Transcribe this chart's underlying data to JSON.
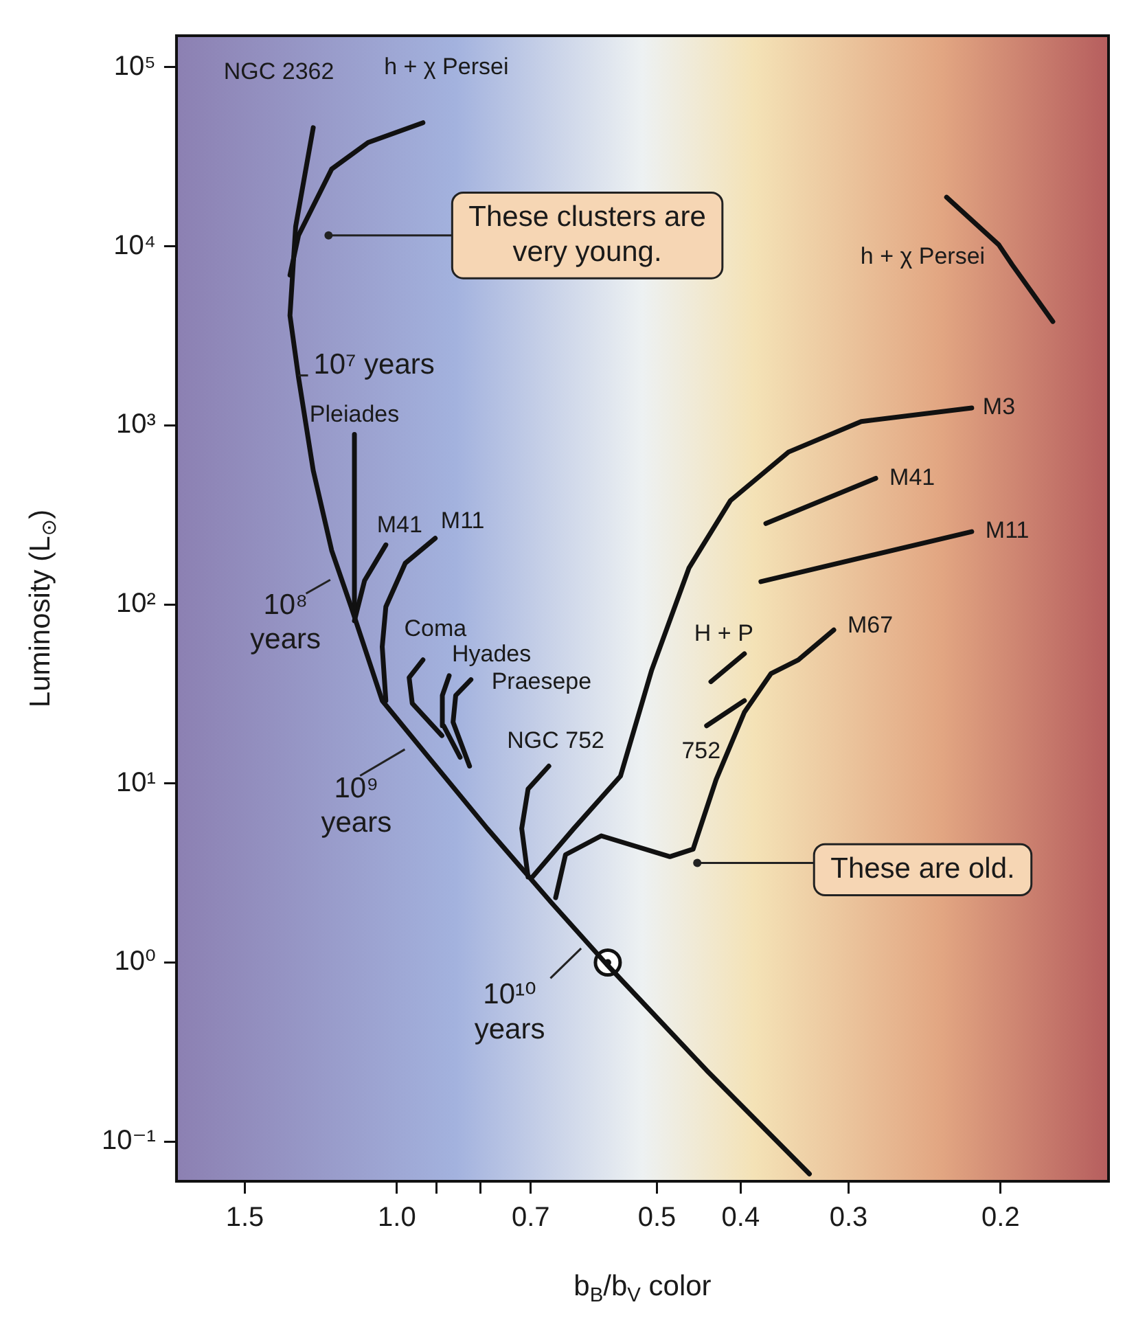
{
  "chart_data": {
    "type": "line",
    "xlabel": "b$_{B}$/b$_{V}$ color",
    "ylabel": "Luminosity (L$_{⊙}$)",
    "log": "xy",
    "grid": false,
    "legend": false,
    "marker": "none",
    "xlim": [
      1.8,
      0.15
    ],
    "xticks": [
      1.5,
      {
        "value": 1,
        "label": "1.0"
      },
      {
        "value": 0.9,
        "label": null
      },
      {
        "value": 0.8,
        "label": null
      },
      0.7,
      0.5,
      0.4,
      0.3,
      0.2
    ],
    "ylim": [
      0.06,
      150000
    ],
    "yticks": [
      {
        "value": 0.1,
        "label": "10⁻¹"
      },
      {
        "value": 1,
        "label": "10⁰"
      },
      {
        "value": 10,
        "label": "10¹"
      },
      {
        "value": 100,
        "label": "10²"
      },
      {
        "value": 1000,
        "label": "10³"
      },
      {
        "value": 10000,
        "label": "10⁴"
      },
      {
        "value": 100000,
        "label": "10⁵"
      }
    ],
    "series": [
      {
        "name": "NGC 2362",
        "color": "#111111",
        "x": [
          0.333,
          0.438,
          0.572,
          0.662,
          0.786,
          0.919,
          1.04,
          1.13,
          1.19,
          1.25,
          1.3,
          1.33,
          1.31,
          1.25
        ],
        "values": [
          0.066,
          0.25,
          0.98,
          2.15,
          5.6,
          14,
          29,
          97,
          200,
          560,
          1850,
          4100,
          12900,
          46000
        ]
      },
      {
        "name": "h + χ Persei",
        "color": "#111111",
        "x": [
          1.33,
          1.3,
          1.19,
          1.08,
          0.933
        ],
        "values": [
          6900,
          11500,
          27000,
          38000,
          49000
        ]
      },
      {
        "name": "Pleiades",
        "color": "#111111",
        "x": [
          1.12,
          1.12
        ],
        "values": [
          92,
          890
        ]
      },
      {
        "name": "M41",
        "color": "#111111",
        "x": [
          1.12,
          1.09,
          1.03
        ],
        "values": [
          81,
          136,
          215
        ]
      },
      {
        "name": "M11",
        "color": "#111111",
        "x": [
          1.03,
          1.04,
          1.03,
          0.978,
          0.903
        ],
        "values": [
          29,
          58,
          97,
          170,
          234
        ]
      },
      {
        "name": "Coma",
        "color": "#111111",
        "x": [
          0.887,
          0.96,
          0.968,
          0.933
        ],
        "values": [
          18.5,
          28,
          39,
          49
        ]
      },
      {
        "name": "Hyades",
        "color": "#111111",
        "x": [
          0.845,
          0.883,
          0.886,
          0.87
        ],
        "values": [
          14,
          21,
          31,
          40
        ]
      },
      {
        "name": "Praesepe",
        "color": "#111111",
        "x": [
          0.824,
          0.861,
          0.855,
          0.821
        ],
        "values": [
          12.5,
          22,
          31,
          38
        ]
      },
      {
        "name": "NGC 752",
        "color": "#111111",
        "x": [
          0.705,
          0.717,
          0.705,
          0.667
        ],
        "values": [
          3.0,
          5.6,
          9.3,
          12.5
        ]
      },
      {
        "name": "M3",
        "color": "#111111",
        "x": [
          0.697,
          0.624,
          0.551,
          0.507,
          0.459,
          0.411,
          0.352,
          0.29,
          0.216
        ],
        "values": [
          3.0,
          5.6,
          11,
          43,
          160,
          380,
          710,
          1050,
          1250
        ]
      },
      {
        "name": "M67",
        "color": "#111111",
        "x": [
          0.655,
          0.638,
          0.58,
          0.483,
          0.454,
          0.427,
          0.396,
          0.369,
          0.343,
          0.312
        ],
        "values": [
          2.3,
          4.0,
          5.1,
          3.9,
          4.3,
          10.5,
          25,
          41,
          49,
          72
        ]
      },
      {
        "name": "H + P",
        "color": "#111111",
        "x": [
          0.433,
          0.396
        ],
        "values": [
          37,
          53
        ]
      },
      {
        "name": "752",
        "color": "#111111",
        "x": [
          0.438,
          0.396
        ],
        "values": [
          21,
          29
        ]
      },
      {
        "name": "M41",
        "color": "#111111",
        "x": [
          0.374,
          0.279
        ],
        "values": [
          283,
          506
        ]
      },
      {
        "name": "M11",
        "color": "#111111",
        "x": [
          0.379,
          0.216
        ],
        "values": [
          134,
          255
        ]
      },
      {
        "name": "h + χ Persei",
        "color": "#111111",
        "x": [
          0.231,
          0.201,
          0.194,
          0.174
        ],
        "values": [
          18800,
          10200,
          7900,
          3800
        ]
      },
      {
        "type": "scatter",
        "marker": "circle",
        "color": "#111111",
        "x": [
          0.57
        ],
        "values": [
          1
        ]
      }
    ],
    "annotations": [
      {
        "text": "These clusters are very young.",
        "x": 1.2,
        "y": 11500
      },
      {
        "text": "These are old.",
        "x": 0.449,
        "y": 3.6
      },
      {
        "text": "10⁷ years",
        "x": 1.3,
        "y": 1900
      },
      "10⁸ years",
      "10⁹ years",
      {
        "text": "10¹⁰ years",
        "x": 0.612,
        "y": 1.2
      }
    ]
  }
}
